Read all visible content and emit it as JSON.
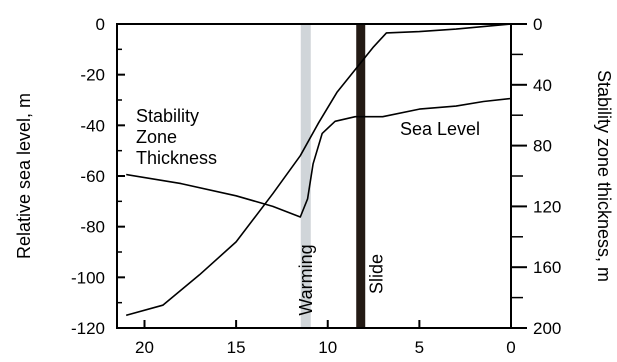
{
  "chart_data": {
    "type": "line",
    "title": "",
    "xlabel": "",
    "xlim": [
      21.5,
      0
    ],
    "x_ticks": [
      20,
      15,
      10,
      5,
      0
    ],
    "y_left": {
      "label": "Relative sea level, m",
      "lim": [
        -120,
        0
      ],
      "ticks": [
        0,
        -20,
        -40,
        -60,
        -80,
        -100,
        -120
      ],
      "minor_step": 10
    },
    "y_right": {
      "label": "Stability zone thickness, m",
      "lim": [
        0,
        200
      ],
      "ticks": [
        0,
        40,
        80,
        120,
        160,
        200
      ],
      "minor_step": 20
    },
    "series": [
      {
        "name": "Sea Level",
        "axis": "left",
        "points": [
          [
            21,
            -115
          ],
          [
            19,
            -111
          ],
          [
            17,
            -99
          ],
          [
            15,
            -86
          ],
          [
            13,
            -67
          ],
          [
            11.5,
            -52
          ],
          [
            10.5,
            -39
          ],
          [
            9.5,
            -27
          ],
          [
            8.5,
            -18
          ],
          [
            7.5,
            -9
          ],
          [
            6.8,
            -3.5
          ],
          [
            5,
            -3
          ],
          [
            3,
            -2
          ],
          [
            0,
            0
          ]
        ]
      },
      {
        "name": "Stability Zone Thickness",
        "axis": "right",
        "points": [
          [
            21,
            99
          ],
          [
            18,
            105
          ],
          [
            15,
            113
          ],
          [
            13,
            120
          ],
          [
            11.5,
            127
          ],
          [
            11.1,
            115
          ],
          [
            10.8,
            92
          ],
          [
            10.3,
            72
          ],
          [
            9.6,
            64
          ],
          [
            8.5,
            61
          ],
          [
            7,
            61
          ],
          [
            5,
            56
          ],
          [
            3,
            54
          ],
          [
            1.5,
            51
          ],
          [
            0,
            49
          ]
        ]
      }
    ],
    "events": [
      {
        "label": "Warming",
        "x": 11.2,
        "color": "#d0d5d9"
      },
      {
        "label": "Slide",
        "x": 8.2,
        "color": "#231a14"
      }
    ],
    "annotations": {
      "stability_label": [
        "Stability",
        "Zone",
        "Thickness"
      ],
      "sea_level_label": "Sea Level"
    },
    "grid": false,
    "legend": "none"
  }
}
